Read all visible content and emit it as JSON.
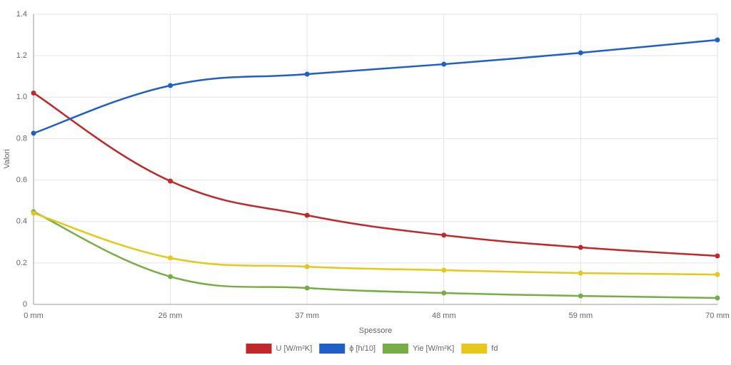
{
  "chart_data": {
    "type": "line",
    "x_label": "Spessore",
    "y_label": "Valori",
    "categories": [
      "0 mm",
      "26 mm",
      "37 mm",
      "48 mm",
      "59 mm",
      "70 mm"
    ],
    "series": [
      {
        "name": "U [W/m²K]",
        "color": "#c0282a",
        "values": [
          1.02,
          0.595,
          0.43,
          0.334,
          0.275,
          0.234
        ]
      },
      {
        "name": "ϕ [h/10]",
        "color": "#1f5fc6",
        "values": [
          0.826,
          1.056,
          1.111,
          1.159,
          1.214,
          1.276
        ]
      },
      {
        "name": "Yie [W/m²K]",
        "color": "#77ad45",
        "values": [
          0.447,
          0.134,
          0.079,
          0.055,
          0.041,
          0.031
        ]
      },
      {
        "name": "fd",
        "color": "#e5c81a",
        "values": [
          0.44,
          0.224,
          0.182,
          0.165,
          0.151,
          0.144
        ]
      }
    ],
    "ylim": [
      0,
      1.4
    ],
    "yticks": [
      0,
      0.2,
      0.4,
      0.6,
      0.8,
      {
        "value": 1,
        "label": "1.0"
      },
      1.2,
      1.4
    ],
    "grid": true
  }
}
